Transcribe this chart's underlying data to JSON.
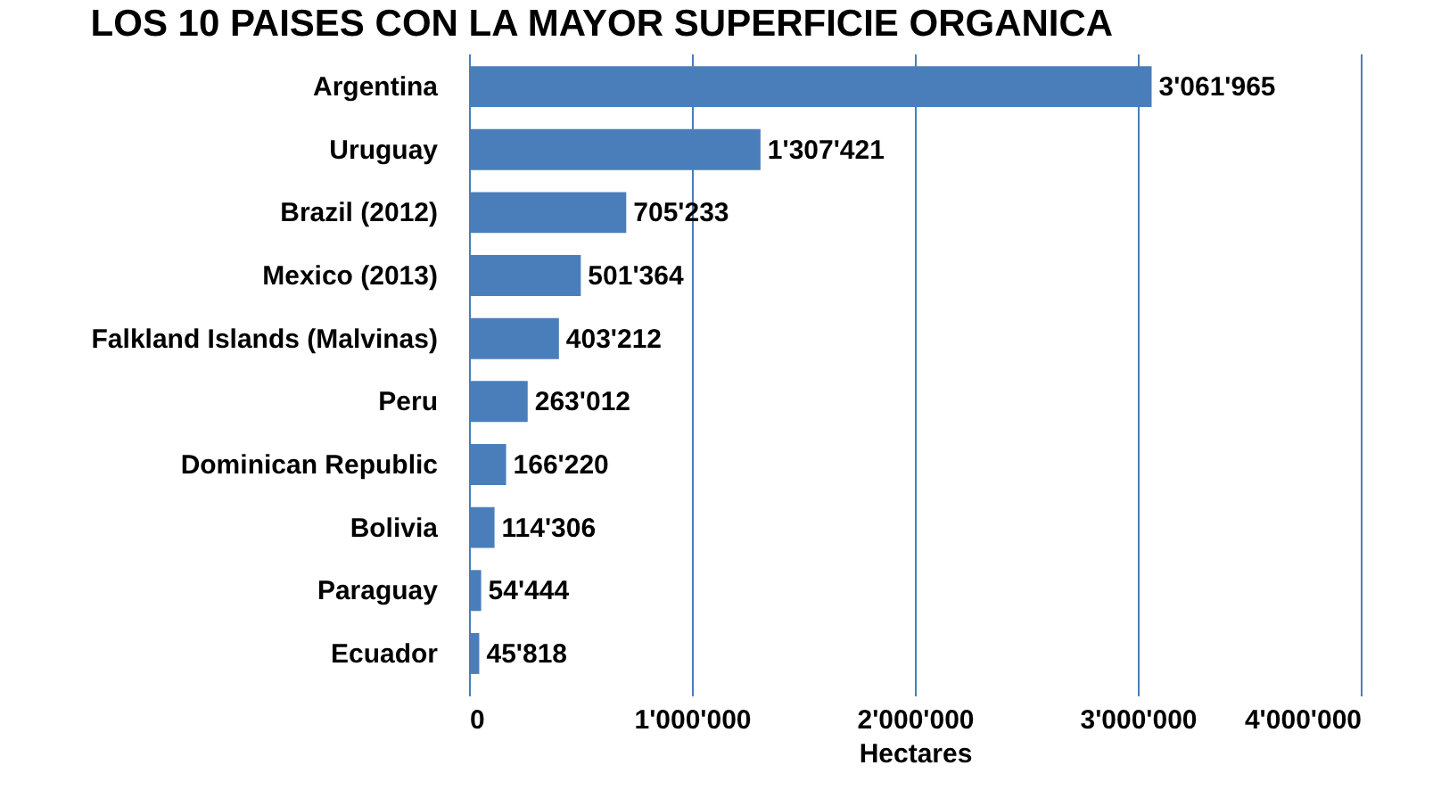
{
  "chart_data": {
    "type": "bar",
    "orientation": "horizontal",
    "title": "LOS 10 PAISES CON LA MAYOR SUPERFICIE ORGANICA",
    "xlabel": "Hectares",
    "categories": [
      "Argentina",
      "Uruguay",
      "Brazil (2012)",
      "Mexico (2013)",
      "Falkland Islands (Malvinas)",
      "Peru",
      "Dominican Republic",
      "Bolivia",
      "Paraguay",
      "Ecuador"
    ],
    "values": [
      3061965,
      1307421,
      705233,
      501364,
      403212,
      263012,
      166220,
      114306,
      54444,
      45818
    ],
    "value_labels": [
      "3'061'965",
      "1'307'421",
      "705'233",
      "501'364",
      "403'212",
      "263'012",
      "166'220",
      "114'306",
      "54'444",
      "45'818"
    ],
    "color": "#4a7ebb",
    "xlim": [
      0,
      4000000
    ],
    "xticks": [
      {
        "value": 0,
        "label": "0"
      },
      {
        "value": 1000000,
        "label": "1'000'000"
      },
      {
        "value": 2000000,
        "label": "2'000'000"
      },
      {
        "value": 3000000,
        "label": "3'000'000"
      },
      {
        "value": 4000000,
        "label": "4'000'000"
      }
    ],
    "grid": "x"
  }
}
